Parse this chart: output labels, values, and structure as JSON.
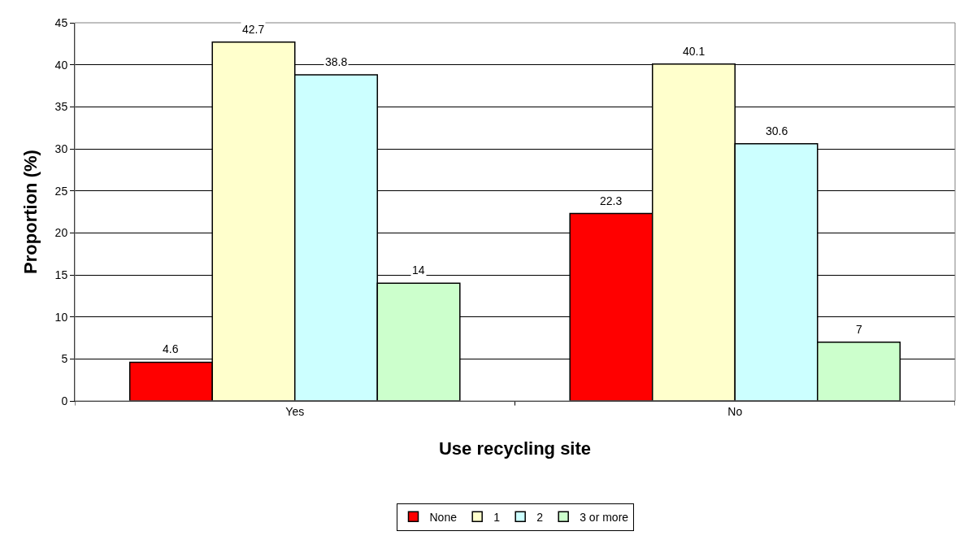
{
  "chart_data": {
    "type": "bar",
    "xlabel": "Use recycling site",
    "ylabel": "Proportion (%)",
    "categories": [
      "Yes",
      "No"
    ],
    "series": [
      {
        "name": "None",
        "color": "#ff0000",
        "values": [
          4.6,
          22.3
        ]
      },
      {
        "name": "1",
        "color": "#ffffcc",
        "values": [
          42.7,
          40.1
        ]
      },
      {
        "name": "2",
        "color": "#ccffff",
        "values": [
          38.8,
          30.6
        ]
      },
      {
        "name": "3 or more",
        "color": "#ccffcc",
        "values": [
          14,
          7
        ]
      }
    ],
    "ylim": [
      0,
      45
    ],
    "yticks": [
      0,
      5,
      10,
      15,
      20,
      25,
      30,
      35,
      40,
      45
    ],
    "grid": "y",
    "legend": "bottom",
    "data_labels": true
  }
}
